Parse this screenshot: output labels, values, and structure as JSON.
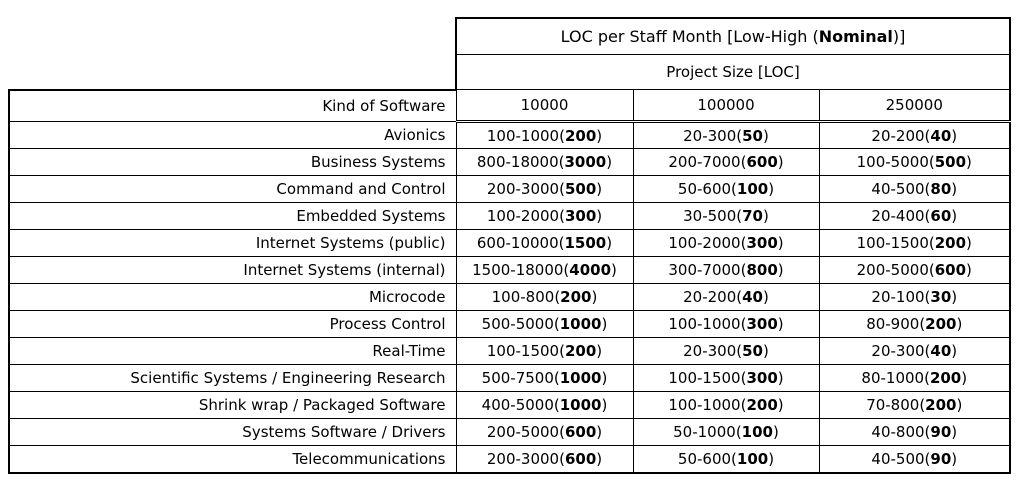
{
  "table": {
    "title": {
      "pre": "LOC per Staff Month [Low-High (",
      "bold": "Nominal",
      "post": ")]"
    },
    "subtitle": "Project Size [LOC]",
    "kind_header": "Kind of Software",
    "size_headers": [
      "10000",
      "100000",
      "250000"
    ],
    "rows": [
      {
        "kind": "Avionics",
        "cells": [
          {
            "pre": "100-1000(",
            "bold": "200",
            "post": ")"
          },
          {
            "pre": "20-300(",
            "bold": "50",
            "post": ")"
          },
          {
            "pre": "20-200(",
            "bold": "40",
            "post": ")"
          }
        ]
      },
      {
        "kind": "Business Systems",
        "cells": [
          {
            "pre": "800-18000(",
            "bold": "3000",
            "post": ")"
          },
          {
            "pre": "200-7000(",
            "bold": "600",
            "post": ")"
          },
          {
            "pre": "100-5000(",
            "bold": "500",
            "post": ")"
          }
        ]
      },
      {
        "kind": "Command and Control",
        "cells": [
          {
            "pre": "200-3000(",
            "bold": "500",
            "post": ")"
          },
          {
            "pre": "50-600(",
            "bold": "100",
            "post": ")"
          },
          {
            "pre": "40-500(",
            "bold": "80",
            "post": ")"
          }
        ]
      },
      {
        "kind": "Embedded Systems",
        "cells": [
          {
            "pre": "100-2000(",
            "bold": "300",
            "post": ")"
          },
          {
            "pre": "30-500(",
            "bold": "70",
            "post": ")"
          },
          {
            "pre": "20-400(",
            "bold": "60",
            "post": ")"
          }
        ]
      },
      {
        "kind": "Internet Systems (public)",
        "cells": [
          {
            "pre": "600-10000(",
            "bold": "1500",
            "post": ")"
          },
          {
            "pre": "100-2000(",
            "bold": "300",
            "post": ")"
          },
          {
            "pre": "100-1500(",
            "bold": "200",
            "post": ")"
          }
        ]
      },
      {
        "kind": "Internet Systems (internal)",
        "cells": [
          {
            "pre": "1500-18000(",
            "bold": "4000",
            "post": ")"
          },
          {
            "pre": "300-7000(",
            "bold": "800",
            "post": ")"
          },
          {
            "pre": "200-5000(",
            "bold": "600",
            "post": ")"
          }
        ]
      },
      {
        "kind": "Microcode",
        "cells": [
          {
            "pre": "100-800(",
            "bold": "200",
            "post": ")"
          },
          {
            "pre": "20-200(",
            "bold": "40",
            "post": ")"
          },
          {
            "pre": "20-100(",
            "bold": "30",
            "post": ")"
          }
        ]
      },
      {
        "kind": "Process Control",
        "cells": [
          {
            "pre": "500-5000(",
            "bold": "1000",
            "post": ")"
          },
          {
            "pre": "100-1000(",
            "bold": "300",
            "post": ")"
          },
          {
            "pre": "80-900(",
            "bold": "200",
            "post": ")"
          }
        ]
      },
      {
        "kind": "Real-Time",
        "cells": [
          {
            "pre": "100-1500(",
            "bold": "200",
            "post": ")"
          },
          {
            "pre": "20-300(",
            "bold": "50",
            "post": ")"
          },
          {
            "pre": "20-300(",
            "bold": "40",
            "post": ")"
          }
        ]
      },
      {
        "kind": "Scientific Systems / Engineering Research",
        "cells": [
          {
            "pre": "500-7500(",
            "bold": "1000",
            "post": ")"
          },
          {
            "pre": "100-1500(",
            "bold": "300",
            "post": ")"
          },
          {
            "pre": "80-1000(",
            "bold": "200",
            "post": ")"
          }
        ]
      },
      {
        "kind": "Shrink wrap / Packaged Software",
        "cells": [
          {
            "pre": "400-5000(",
            "bold": "1000",
            "post": ")"
          },
          {
            "pre": "100-1000(",
            "bold": "200",
            "post": ")"
          },
          {
            "pre": "70-800(",
            "bold": "200",
            "post": ")"
          }
        ]
      },
      {
        "kind": "Systems Software / Drivers",
        "cells": [
          {
            "pre": "200-5000(",
            "bold": "600",
            "post": ")"
          },
          {
            "pre": "50-1000(",
            "bold": "100",
            "post": ")"
          },
          {
            "pre": "40-800(",
            "bold": "90",
            "post": ")"
          }
        ]
      },
      {
        "kind": "Telecommunications",
        "cells": [
          {
            "pre": "200-3000(",
            "bold": "600",
            "post": ")"
          },
          {
            "pre": "50-600(",
            "bold": "100",
            "post": ")"
          },
          {
            "pre": "40-500(",
            "bold": "90",
            "post": ")"
          }
        ]
      }
    ]
  }
}
